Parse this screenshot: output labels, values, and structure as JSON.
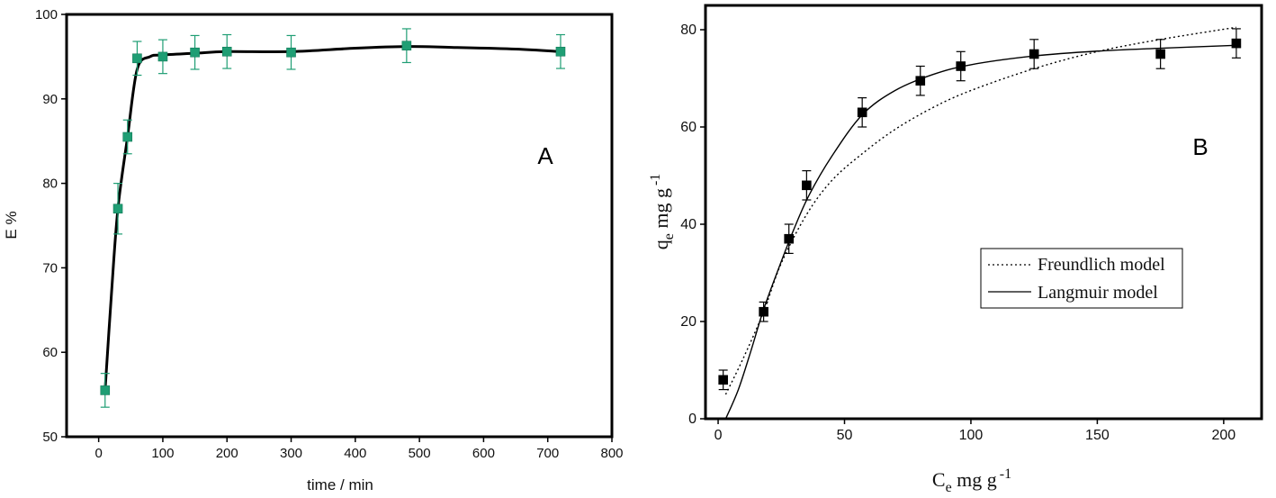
{
  "chart_data": [
    {
      "type": "scatter",
      "panel_label": "A",
      "xlabel": "time / min",
      "ylabel": "E %",
      "xlim": [
        -50,
        800
      ],
      "ylim": [
        50,
        100
      ],
      "xticks": [
        0,
        100,
        200,
        300,
        400,
        500,
        600,
        700,
        800
      ],
      "yticks": [
        50,
        60,
        70,
        80,
        90,
        100
      ],
      "grid": false,
      "marker_color": "#1f9e74",
      "series": [
        {
          "x": [
            10,
            30,
            45,
            60,
            100,
            150,
            200,
            300,
            480,
            720
          ],
          "y": [
            55.5,
            77,
            85.5,
            94.8,
            95,
            95.5,
            95.6,
            95.5,
            96.3,
            95.6
          ],
          "error": [
            2,
            3,
            2,
            2,
            2,
            2,
            2,
            2,
            2,
            2
          ]
        }
      ],
      "fit_curve": {
        "x": [
          10,
          20,
          30,
          45,
          60,
          80,
          100,
          150,
          200,
          300,
          400,
          480,
          550,
          650,
          720
        ],
        "y": [
          55.5,
          67,
          77,
          85.5,
          93.5,
          95,
          95.2,
          95.4,
          95.6,
          95.6,
          96.0,
          96.2,
          96.1,
          95.9,
          95.6
        ]
      }
    },
    {
      "type": "scatter",
      "panel_label": "B",
      "xlabel_main": "C",
      "xlabel_sub": "e",
      "xlabel_rest": " mg g",
      "xlabel_sup": "-1",
      "ylabel_main": "q",
      "ylabel_sub": "e",
      "ylabel_rest": " mg g",
      "ylabel_sup": "-1",
      "xlim": [
        -5,
        215
      ],
      "ylim": [
        0,
        85
      ],
      "xticks": [
        0,
        50,
        100,
        150,
        200
      ],
      "yticks": [
        0,
        20,
        40,
        60,
        80
      ],
      "grid": false,
      "legend_position": "center-right",
      "marker_color": "#000000",
      "series": [
        {
          "x": [
            2,
            18,
            28,
            35,
            57,
            80,
            96,
            125,
            175,
            205
          ],
          "y": [
            8,
            22,
            37,
            48,
            63,
            69.5,
            72.5,
            75,
            75,
            77.2
          ],
          "error": [
            2,
            2,
            3,
            3,
            3,
            3,
            3,
            3,
            3,
            3
          ]
        }
      ],
      "models": [
        {
          "name": "Freundlich model",
          "style": "dotted",
          "x": [
            3,
            10,
            18,
            25,
            35,
            45,
            57,
            70,
            85,
            100,
            125,
            150,
            175,
            205
          ],
          "y": [
            5,
            12.5,
            22,
            32,
            42,
            49,
            54.5,
            59.5,
            64,
            67.5,
            72,
            75.5,
            78,
            80.5
          ]
        },
        {
          "name": "Langmuir model",
          "style": "solid",
          "x": [
            3,
            8,
            13,
            18,
            24,
            30,
            36,
            45,
            57,
            70,
            85,
            100,
            125,
            150,
            175,
            205
          ],
          "y": [
            0,
            6,
            14,
            22.5,
            31,
            39,
            46,
            54,
            62.5,
            67.5,
            70.8,
            72.8,
            74.6,
            75.6,
            76.2,
            76.8
          ]
        }
      ]
    }
  ]
}
